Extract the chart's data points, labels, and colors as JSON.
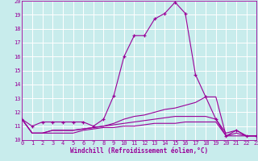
{
  "xlabel": "Windchill (Refroidissement éolien,°C)",
  "bg_color": "#c8ecec",
  "line_color": "#990099",
  "grid_color": "#ffffff",
  "xmin": 0,
  "xmax": 23,
  "ymin": 10,
  "ymax": 20,
  "series": [
    {
      "y": [
        11.5,
        11.0,
        11.3,
        11.3,
        11.3,
        11.3,
        11.3,
        11.0,
        11.5,
        13.2,
        16.0,
        17.5,
        17.5,
        18.7,
        19.1,
        19.9,
        19.1,
        14.7,
        13.1,
        11.5,
        10.3,
        10.7,
        10.3,
        10.3
      ],
      "marker": true
    },
    {
      "y": [
        11.5,
        10.5,
        10.5,
        10.7,
        10.7,
        10.7,
        10.8,
        10.9,
        11.0,
        11.2,
        11.5,
        11.7,
        11.8,
        12.0,
        12.2,
        12.3,
        12.5,
        12.7,
        13.1,
        13.1,
        10.3,
        10.3,
        10.3,
        10.3
      ],
      "marker": false
    },
    {
      "y": [
        11.5,
        10.5,
        10.5,
        10.7,
        10.7,
        10.7,
        10.8,
        10.9,
        11.0,
        11.1,
        11.2,
        11.3,
        11.4,
        11.5,
        11.6,
        11.7,
        11.7,
        11.7,
        11.7,
        11.5,
        10.5,
        10.7,
        10.3,
        10.3
      ],
      "marker": false
    },
    {
      "y": [
        11.5,
        10.5,
        10.5,
        10.5,
        10.5,
        10.5,
        10.7,
        10.8,
        10.9,
        10.9,
        11.0,
        11.0,
        11.1,
        11.2,
        11.2,
        11.2,
        11.3,
        11.3,
        11.3,
        11.3,
        10.3,
        10.5,
        10.3,
        10.3
      ],
      "marker": false
    }
  ]
}
